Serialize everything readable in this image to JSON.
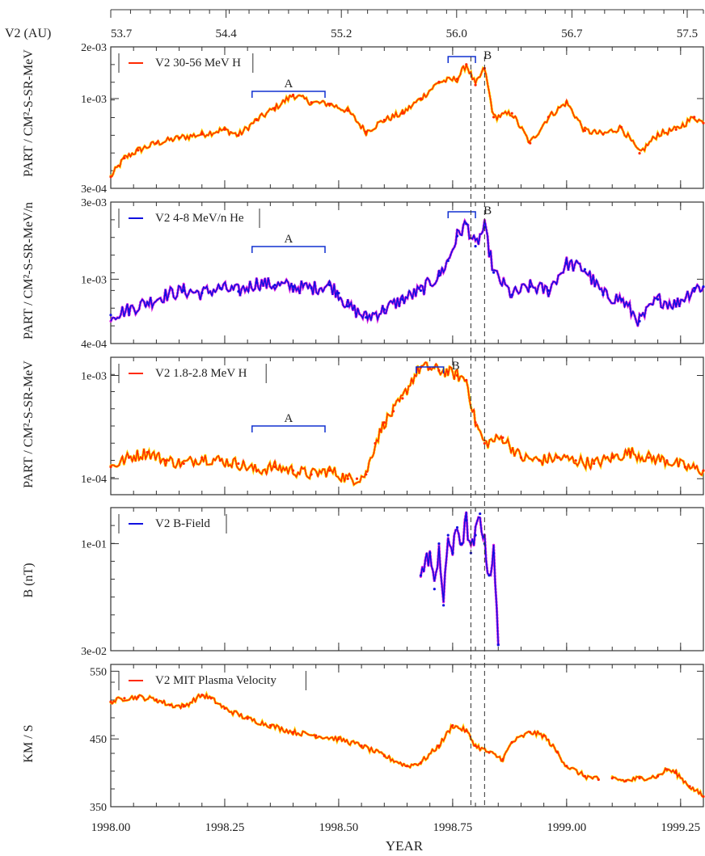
{
  "chart_data": {
    "type": "line",
    "top_axis": {
      "label": "V2 (AU)",
      "ticks": [
        "53.7",
        "54.4",
        "55.2",
        "56.0",
        "56.7",
        "57.5"
      ],
      "tick_years": [
        1998.0,
        1998.18,
        1998.36,
        1998.54,
        1998.72,
        1998.9
      ]
    },
    "x_axis": {
      "label": "YEAR",
      "range": [
        1998.0,
        1999.3
      ],
      "ticks": [
        "1998.00",
        "1998.25",
        "1998.50",
        "1998.75",
        "1999.00",
        "1999.25"
      ],
      "tick_values": [
        1998.0,
        1998.25,
        1998.5,
        1998.75,
        1999.0,
        1999.25
      ]
    },
    "vertical_lines": [
      1998.79,
      1998.82
    ],
    "panels": [
      {
        "legend": "V2 30-56 MeV H",
        "ylabel_group": "PART / CM²-S-SR-MeV",
        "scale": "log",
        "ylim": [
          0.0003,
          0.002
        ],
        "yticks": [
          "2e-03",
          "1e-03",
          "3e-04"
        ],
        "ytick_values": [
          0.002,
          0.001,
          0.0003
        ],
        "line_color": "#ff2a00",
        "marker_color": "#ffd800",
        "noise": 0.02,
        "series": {
          "x": [
            1998.0,
            1998.03,
            1998.06,
            1998.1,
            1998.15,
            1998.2,
            1998.25,
            1998.28,
            1998.32,
            1998.36,
            1998.4,
            1998.44,
            1998.48,
            1998.52,
            1998.56,
            1998.6,
            1998.64,
            1998.68,
            1998.72,
            1998.76,
            1998.78,
            1998.8,
            1998.82,
            1998.84,
            1998.88,
            1998.92,
            1998.96,
            1999.0,
            1999.04,
            1999.08,
            1999.12,
            1999.16,
            1999.2,
            1999.24,
            1999.28,
            1999.3
          ],
          "y": [
            0.00035,
            0.00045,
            0.0005,
            0.00055,
            0.00059,
            0.00062,
            0.00066,
            0.00061,
            0.00075,
            0.00088,
            0.00105,
            0.00095,
            0.00093,
            0.00085,
            0.00064,
            0.00075,
            0.00082,
            0.001,
            0.00125,
            0.0013,
            0.00158,
            0.0012,
            0.0015,
            0.00078,
            0.00082,
            0.00055,
            0.00078,
            0.00095,
            0.00065,
            0.00062,
            0.00068,
            0.00048,
            0.00062,
            0.00066,
            0.00078,
            0.00072
          ]
        },
        "brackets": [
          {
            "label": "A",
            "x1": 1998.31,
            "x2": 1998.47
          },
          {
            "label": "B",
            "x1": 1998.74,
            "x2": 1998.8
          }
        ]
      },
      {
        "legend": "V2 4-8 MeV/n He",
        "ylabel_group": "PART / CM²-S-SR-MeV/n",
        "scale": "log",
        "ylim": [
          0.0004,
          0.003
        ],
        "yticks": [
          "3e-03",
          "1e-03",
          "4e-04"
        ],
        "ytick_values": [
          0.003,
          0.001,
          0.0004
        ],
        "line_color": "#1010e0",
        "marker_color": "#e020e0",
        "noise": 0.045,
        "series": {
          "x": [
            1998.0,
            1998.04,
            1998.08,
            1998.12,
            1998.16,
            1998.2,
            1998.24,
            1998.28,
            1998.32,
            1998.36,
            1998.4,
            1998.44,
            1998.48,
            1998.5,
            1998.52,
            1998.56,
            1998.6,
            1998.64,
            1998.68,
            1998.72,
            1998.74,
            1998.76,
            1998.78,
            1998.8,
            1998.82,
            1998.84,
            1998.88,
            1998.92,
            1998.96,
            1999.0,
            1999.04,
            1999.08,
            1999.12,
            1999.16,
            1999.2,
            1999.24,
            1999.28,
            1999.3
          ],
          "y": [
            0.0006,
            0.00065,
            0.00072,
            0.0008,
            0.00085,
            0.00082,
            0.00088,
            0.00084,
            0.00095,
            0.00092,
            0.0009,
            0.00088,
            0.00092,
            0.00082,
            0.00068,
            0.00058,
            0.00065,
            0.00075,
            0.00085,
            0.00105,
            0.0013,
            0.00185,
            0.0022,
            0.0016,
            0.0021,
            0.0011,
            0.0008,
            0.0009,
            0.00085,
            0.00125,
            0.00115,
            0.0008,
            0.00075,
            0.00055,
            0.00075,
            0.0007,
            0.00088,
            0.0009
          ]
        },
        "brackets": [
          {
            "label": "A",
            "x1": 1998.31,
            "x2": 1998.47
          },
          {
            "label": "B",
            "x1": 1998.74,
            "x2": 1998.8
          }
        ]
      },
      {
        "legend": "V2 1.8-2.8 MeV H",
        "ylabel_group": "PART / CM²-S-SR-MeV",
        "scale": "log",
        "ylim": [
          7e-05,
          0.0015
        ],
        "yticks": [
          "1e-03",
          "1e-04"
        ],
        "ytick_values": [
          0.001,
          0.0001
        ],
        "line_color": "#ff2a00",
        "marker_color": "#ffd800",
        "noise": 0.06,
        "series": {
          "x": [
            1998.0,
            1998.04,
            1998.08,
            1998.12,
            1998.16,
            1998.2,
            1998.24,
            1998.28,
            1998.32,
            1998.36,
            1998.4,
            1998.44,
            1998.48,
            1998.52,
            1998.54,
            1998.56,
            1998.58,
            1998.6,
            1998.62,
            1998.64,
            1998.66,
            1998.68,
            1998.7,
            1998.72,
            1998.74,
            1998.76,
            1998.78,
            1998.8,
            1998.82,
            1998.86,
            1998.9,
            1998.94,
            1998.98,
            1999.02,
            1999.06,
            1999.1,
            1999.14,
            1999.18,
            1999.22,
            1999.26,
            1999.3
          ],
          "y": [
            0.00013,
            0.00016,
            0.00018,
            0.00015,
            0.00014,
            0.00016,
            0.00015,
            0.00014,
            0.00012,
            0.00013,
            0.00012,
            0.00011,
            0.00012,
            0.0001,
            0.0001,
            0.00011,
            0.00022,
            0.00035,
            0.00045,
            0.0006,
            0.0009,
            0.0012,
            0.00118,
            0.00112,
            0.00108,
            0.001,
            0.0009,
            0.00035,
            0.00022,
            0.00025,
            0.00016,
            0.00015,
            0.00016,
            0.00015,
            0.00014,
            0.00016,
            0.00018,
            0.00016,
            0.00015,
            0.00013,
            0.00012
          ]
        },
        "brackets": [
          {
            "label": "A",
            "x1": 1998.31,
            "x2": 1998.47
          },
          {
            "label": "B",
            "x1": 1998.67,
            "x2": 1998.73
          }
        ]
      },
      {
        "legend": "V2 B-Field",
        "ylabel": "B (nT)",
        "scale": "log",
        "ylim": [
          0.03,
          0.15
        ],
        "yticks": [
          "1e-01",
          "3e-02"
        ],
        "ytick_values": [
          0.1,
          0.03
        ],
        "line_color": "#1010e0",
        "marker_color": "#e020e0",
        "noise": 0.05,
        "series": {
          "x": [
            1998.68,
            1998.7,
            1998.71,
            1998.72,
            1998.73,
            1998.74,
            1998.75,
            1998.76,
            1998.77,
            1998.78,
            1998.79,
            1998.8,
            1998.81,
            1998.82,
            1998.83,
            1998.84,
            1998.85
          ],
          "y": [
            0.07,
            0.09,
            0.06,
            0.1,
            0.05,
            0.11,
            0.09,
            0.12,
            0.1,
            0.13,
            0.09,
            0.11,
            0.14,
            0.1,
            0.07,
            0.09,
            0.032
          ]
        }
      },
      {
        "legend": "V2 MIT Plasma Velocity",
        "ylabel": "KM / S",
        "scale": "linear",
        "ylim": [
          350,
          560
        ],
        "yticks": [
          "550",
          "450",
          "350"
        ],
        "ytick_values": [
          550,
          450,
          350
        ],
        "line_color": "#ff2a00",
        "marker_color": "#ffd800",
        "noise": 0.0,
        "jitter": 4,
        "series": {
          "x": [
            1998.0,
            1998.03,
            1998.06,
            1998.1,
            1998.13,
            1998.16,
            1998.2,
            1998.22,
            1998.25,
            1998.3,
            1998.35,
            1998.4,
            1998.45,
            1998.5,
            1998.55,
            1998.6,
            1998.65,
            1998.68,
            1998.72,
            1998.75,
            1998.78,
            1998.8,
            1998.83,
            1998.86,
            1998.88,
            1998.92,
            1998.95,
            1998.98,
            1999.0,
            1999.04,
            1999.07
          ],
          "y": [
            505,
            510,
            512,
            508,
            500,
            498,
            515,
            510,
            495,
            480,
            470,
            460,
            455,
            450,
            440,
            425,
            410,
            415,
            440,
            470,
            462,
            440,
            430,
            420,
            445,
            460,
            455,
            430,
            410,
            395,
            390
          ]
        },
        "series_b": {
          "x": [
            1999.1,
            1999.13,
            1999.16,
            1999.2,
            1999.22,
            1999.24,
            1999.27,
            1999.3
          ],
          "y": [
            392,
            388,
            392,
            395,
            405,
            400,
            380,
            365
          ]
        }
      }
    ]
  }
}
